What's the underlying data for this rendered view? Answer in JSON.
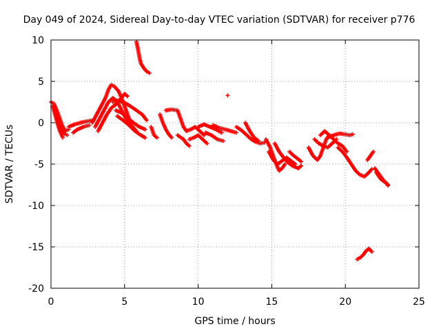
{
  "chart_data": {
    "type": "scatter",
    "title": "Day 049 of 2024, Sidereal Day-to-day VTEC variation (SDTVAR) for receiver p776",
    "xlabel": "GPS time / hours",
    "ylabel": "SDTVAR / TECUs",
    "xlim": [
      0,
      25
    ],
    "ylim": [
      -20,
      10
    ],
    "xticks": [
      0,
      5,
      10,
      15,
      20,
      25
    ],
    "yticks": [
      -20,
      -15,
      -10,
      -5,
      0,
      5,
      10
    ],
    "xtick_labels": [
      "0",
      "5",
      "10",
      "15",
      "20",
      "25"
    ],
    "ytick_labels": [
      "-20",
      "-15",
      "-10",
      "-5",
      "0",
      "5",
      "10"
    ],
    "grid": true,
    "marker": "+",
    "color": "#ff0000",
    "series": [
      {
        "name": "SDTVAR tracks",
        "tracks": [
          [
            [
              0.0,
              2.5
            ],
            [
              0.2,
              2.3
            ],
            [
              0.4,
              1.5
            ],
            [
              0.6,
              0.5
            ],
            [
              0.8,
              -0.5
            ],
            [
              1.0,
              -1.0
            ],
            [
              1.2,
              -0.8
            ]
          ],
          [
            [
              0.1,
              2.0
            ],
            [
              0.3,
              1.2
            ],
            [
              0.5,
              0.0
            ],
            [
              0.7,
              -0.8
            ],
            [
              0.9,
              -1.3
            ],
            [
              1.1,
              -1.5
            ]
          ],
          [
            [
              0.2,
              1.5
            ],
            [
              0.4,
              0.2
            ],
            [
              0.6,
              -1.0
            ],
            [
              0.8,
              -1.8
            ]
          ],
          [
            [
              1.2,
              -0.5
            ],
            [
              1.6,
              -0.2
            ],
            [
              2.0,
              0.0
            ],
            [
              2.5,
              0.2
            ],
            [
              2.9,
              0.3
            ]
          ],
          [
            [
              1.5,
              -1.2
            ],
            [
              1.8,
              -0.8
            ],
            [
              2.2,
              -0.5
            ],
            [
              2.6,
              -0.3
            ]
          ],
          [
            [
              2.8,
              0.0
            ],
            [
              3.1,
              1.0
            ],
            [
              3.4,
              2.0
            ],
            [
              3.7,
              3.0
            ],
            [
              3.9,
              4.0
            ],
            [
              4.1,
              4.6
            ],
            [
              4.3,
              4.4
            ],
            [
              4.6,
              3.8
            ],
            [
              4.9,
              2.5
            ],
            [
              5.2,
              1.0
            ],
            [
              5.5,
              -0.5
            ],
            [
              5.8,
              -1.0
            ]
          ],
          [
            [
              3.0,
              -0.5
            ],
            [
              3.3,
              0.5
            ],
            [
              3.6,
              1.5
            ],
            [
              3.9,
              2.5
            ],
            [
              4.2,
              3.0
            ],
            [
              4.5,
              2.6
            ],
            [
              4.8,
              1.5
            ],
            [
              5.1,
              0.5
            ],
            [
              5.4,
              -0.2
            ],
            [
              5.7,
              -0.8
            ]
          ],
          [
            [
              3.2,
              -1.0
            ],
            [
              3.5,
              0.0
            ],
            [
              3.8,
              1.0
            ],
            [
              4.1,
              1.8
            ],
            [
              4.4,
              2.2
            ],
            [
              4.7,
              2.8
            ],
            [
              5.0,
              3.5
            ],
            [
              5.2,
              3.2
            ]
          ],
          [
            [
              4.2,
              2.5
            ],
            [
              4.6,
              2.7
            ],
            [
              5.0,
              2.4
            ],
            [
              5.4,
              2.0
            ],
            [
              5.8,
              1.5
            ],
            [
              6.2,
              1.0
            ],
            [
              6.5,
              0.3
            ]
          ],
          [
            [
              4.4,
              1.5
            ],
            [
              4.8,
              1.2
            ],
            [
              5.2,
              0.6
            ],
            [
              5.6,
              0.0
            ],
            [
              6.0,
              -0.5
            ],
            [
              6.4,
              -0.8
            ]
          ],
          [
            [
              4.5,
              0.8
            ],
            [
              4.9,
              0.3
            ],
            [
              5.3,
              -0.3
            ],
            [
              5.7,
              -1.0
            ],
            [
              6.1,
              -1.5
            ],
            [
              6.4,
              -1.8
            ]
          ],
          [
            [
              5.8,
              9.8
            ],
            [
              5.9,
              9.0
            ],
            [
              6.0,
              8.0
            ],
            [
              6.1,
              7.2
            ],
            [
              6.3,
              6.6
            ],
            [
              6.5,
              6.2
            ],
            [
              6.7,
              6.0
            ]
          ],
          [
            [
              6.8,
              -0.5
            ],
            [
              7.0,
              -1.5
            ],
            [
              7.2,
              -1.8
            ]
          ],
          [
            [
              7.4,
              1.0
            ],
            [
              7.6,
              0.0
            ],
            [
              7.8,
              -0.8
            ],
            [
              8.0,
              -1.4
            ],
            [
              8.2,
              -1.8
            ]
          ],
          [
            [
              7.8,
              1.5
            ],
            [
              8.2,
              1.6
            ],
            [
              8.6,
              1.5
            ],
            [
              8.8,
              0.5
            ],
            [
              9.0,
              -0.5
            ],
            [
              9.2,
              -1.0
            ]
          ],
          [
            [
              8.6,
              -1.5
            ],
            [
              9.0,
              -2.0
            ],
            [
              9.2,
              -2.5
            ],
            [
              9.4,
              -2.8
            ]
          ],
          [
            [
              9.2,
              -1.0
            ],
            [
              9.5,
              -0.8
            ],
            [
              9.8,
              -0.5
            ],
            [
              10.1,
              -1.0
            ],
            [
              10.4,
              -1.5
            ]
          ],
          [
            [
              9.4,
              -2.0
            ],
            [
              9.7,
              -1.8
            ],
            [
              10.0,
              -1.5
            ],
            [
              10.3,
              -2.0
            ],
            [
              10.6,
              -2.5
            ]
          ],
          [
            [
              10.0,
              -0.5
            ],
            [
              10.4,
              -0.2
            ],
            [
              10.8,
              -0.5
            ],
            [
              11.2,
              -0.8
            ],
            [
              11.6,
              -1.2
            ]
          ],
          [
            [
              10.5,
              -1.2
            ],
            [
              10.9,
              -1.5
            ],
            [
              11.3,
              -2.0
            ],
            [
              11.7,
              -2.2
            ]
          ],
          [
            [
              11.0,
              -0.3
            ],
            [
              11.4,
              -0.6
            ],
            [
              11.8,
              -0.8
            ],
            [
              12.2,
              -1.0
            ],
            [
              12.6,
              -1.2
            ]
          ],
          [
            [
              12.0,
              3.3
            ]
          ],
          [
            [
              12.6,
              -0.5
            ],
            [
              13.0,
              -1.0
            ],
            [
              13.3,
              -1.5
            ],
            [
              13.6,
              -2.0
            ],
            [
              13.9,
              -2.3
            ],
            [
              14.2,
              -2.5
            ],
            [
              14.5,
              -2.4
            ]
          ],
          [
            [
              13.2,
              0.0
            ],
            [
              13.5,
              -1.0
            ],
            [
              13.8,
              -1.8
            ],
            [
              14.1,
              -2.2
            ]
          ],
          [
            [
              14.6,
              -2.0
            ],
            [
              14.9,
              -3.0
            ],
            [
              15.1,
              -4.0
            ],
            [
              15.3,
              -5.0
            ],
            [
              15.5,
              -5.8
            ],
            [
              15.7,
              -5.5
            ],
            [
              15.9,
              -5.0
            ]
          ],
          [
            [
              14.8,
              -3.5
            ],
            [
              15.1,
              -4.5
            ],
            [
              15.4,
              -5.0
            ],
            [
              15.7,
              -4.6
            ],
            [
              16.0,
              -4.2
            ],
            [
              16.3,
              -4.6
            ],
            [
              16.6,
              -5.0
            ]
          ],
          [
            [
              15.2,
              -2.5
            ],
            [
              15.5,
              -3.5
            ],
            [
              15.8,
              -4.2
            ],
            [
              16.1,
              -4.8
            ],
            [
              16.4,
              -5.2
            ],
            [
              16.8,
              -5.5
            ],
            [
              17.0,
              -5.2
            ]
          ],
          [
            [
              16.2,
              -3.5
            ],
            [
              16.5,
              -4.0
            ],
            [
              16.8,
              -4.4
            ],
            [
              17.0,
              -4.7
            ]
          ],
          [
            [
              17.5,
              -3.0
            ],
            [
              17.8,
              -4.0
            ],
            [
              18.1,
              -4.5
            ],
            [
              18.3,
              -4.0
            ],
            [
              18.5,
              -3.0
            ],
            [
              18.7,
              -2.0
            ],
            [
              18.9,
              -1.5
            ]
          ],
          [
            [
              17.9,
              -2.0
            ],
            [
              18.2,
              -2.5
            ],
            [
              18.5,
              -2.8
            ],
            [
              18.8,
              -3.0
            ],
            [
              19.1,
              -2.5
            ],
            [
              19.4,
              -2.0
            ]
          ],
          [
            [
              18.3,
              -1.5
            ],
            [
              18.6,
              -1.0
            ],
            [
              18.9,
              -1.5
            ],
            [
              19.2,
              -2.0
            ],
            [
              19.5,
              -2.5
            ],
            [
              19.8,
              -2.8
            ],
            [
              20.1,
              -3.5
            ]
          ],
          [
            [
              18.8,
              -1.8
            ],
            [
              19.2,
              -1.5
            ],
            [
              19.6,
              -1.3
            ],
            [
              20.0,
              -1.4
            ],
            [
              20.3,
              -1.5
            ],
            [
              20.5,
              -1.4
            ]
          ],
          [
            [
              19.5,
              -3.0
            ],
            [
              19.8,
              -3.5
            ],
            [
              20.1,
              -4.2
            ],
            [
              20.4,
              -5.0
            ],
            [
              20.7,
              -5.8
            ],
            [
              21.0,
              -6.3
            ],
            [
              21.3,
              -6.5
            ],
            [
              21.6,
              -6.0
            ],
            [
              21.8,
              -5.6
            ]
          ],
          [
            [
              21.5,
              -4.5
            ],
            [
              21.7,
              -4.0
            ],
            [
              21.9,
              -3.5
            ]
          ],
          [
            [
              20.8,
              -16.5
            ],
            [
              21.0,
              -16.3
            ],
            [
              21.2,
              -16.0
            ],
            [
              21.4,
              -15.5
            ],
            [
              21.6,
              -15.2
            ],
            [
              21.8,
              -15.6
            ]
          ],
          [
            [
              22.0,
              -5.5
            ],
            [
              22.2,
              -6.0
            ],
            [
              22.4,
              -6.5
            ],
            [
              22.6,
              -7.0
            ],
            [
              22.8,
              -7.3
            ],
            [
              22.9,
              -7.6
            ]
          ],
          [
            [
              22.1,
              -6.0
            ],
            [
              22.4,
              -6.8
            ],
            [
              22.7,
              -7.2
            ],
            [
              22.9,
              -7.5
            ]
          ]
        ]
      }
    ]
  }
}
